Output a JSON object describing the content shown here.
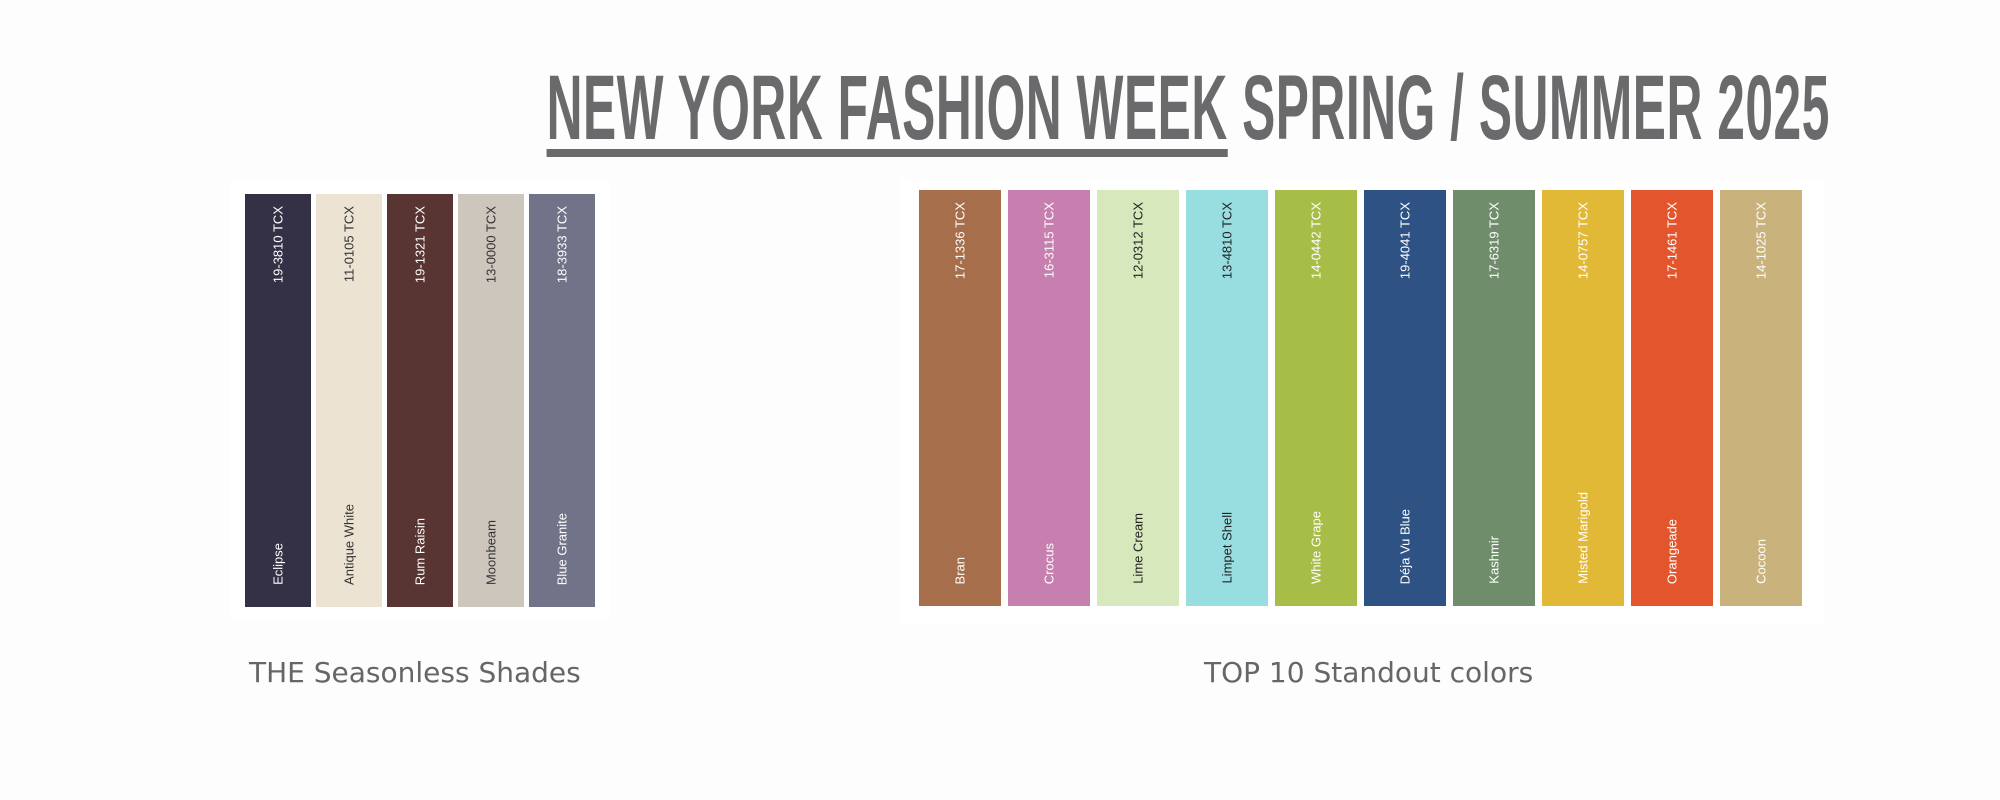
{
  "header": {
    "title_underlined": "NEW YORK FASHION WEEK",
    "title_rest": " SPRING / SUMMER 2025",
    "text_color": "#6a696b"
  },
  "seasonless": {
    "caption": "THE Seasonless Shades",
    "swatches": [
      {
        "code": "19-3810 TCX",
        "name": "Eclipse",
        "color": "#343046",
        "text": "#ffffff"
      },
      {
        "code": "11-0105 TCX",
        "name": "Antique White",
        "color": "#ede3d2",
        "text": "#333333"
      },
      {
        "code": "19-1321 TCX",
        "name": "Rum Raisin",
        "color": "#583432",
        "text": "#ffffff"
      },
      {
        "code": "13-0000 TCX",
        "name": "Moonbeam",
        "color": "#cdc6bd",
        "text": "#333333"
      },
      {
        "code": "18-3933 TCX",
        "name": "Blue Granite",
        "color": "#717388",
        "text": "#ffffff"
      }
    ]
  },
  "standout": {
    "caption": "TOP 10 Standout colors",
    "swatches": [
      {
        "code": "17-1336 TCX",
        "name": "Bran",
        "color": "#a66e4a",
        "text": "#ffffff"
      },
      {
        "code": "16-3115 TCX",
        "name": "Crocus",
        "color": "#c67fae",
        "text": "#ffffff"
      },
      {
        "code": "12-0312 TCX",
        "name": "Lime Cream",
        "color": "#d7e8bc",
        "text": "#222222"
      },
      {
        "code": "13-4810 TCX",
        "name": "Limpet Shell",
        "color": "#98dde0",
        "text": "#222222"
      },
      {
        "code": "14-0442 TCX",
        "name": "White Grape",
        "color": "#a6be47",
        "text": "#ffffff"
      },
      {
        "code": "19-4041 TCX",
        "name": "Déja Vu Blue",
        "color": "#2e5283",
        "text": "#ffffff"
      },
      {
        "code": "17-6319 TCX",
        "name": "Kashmir",
        "color": "#6f8d6a",
        "text": "#ffffff"
      },
      {
        "code": "14-0757 TCX",
        "name": "Misted Marigold",
        "color": "#e2b936",
        "text": "#ffffff"
      },
      {
        "code": "17-1461 TCX",
        "name": "Orangeade",
        "color": "#e2552d",
        "text": "#ffffff"
      },
      {
        "code": "14-1025 TCX",
        "name": "Cocoon",
        "color": "#c9b27c",
        "text": "#ffffff"
      }
    ]
  }
}
